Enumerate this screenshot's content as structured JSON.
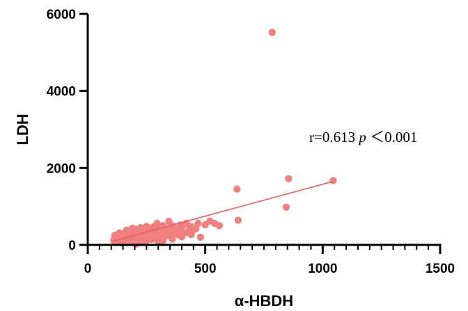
{
  "chart_data": {
    "type": "scatter",
    "xlabel": "α-HBDH",
    "ylabel": "LDH",
    "xlim": [
      0,
      1500
    ],
    "ylim": [
      0,
      6000
    ],
    "x_ticks": [
      "0",
      "500",
      "1000",
      "1500"
    ],
    "y_ticks": [
      "0",
      "2000",
      "4000",
      "6000"
    ],
    "annotation": {
      "r_text": "r=0.613 ",
      "p_symbol": "p",
      "p_text": "＜0.001"
    },
    "point_color": "#F08080",
    "line_color": "#E8605C",
    "grid": false,
    "fit_line": {
      "x": [
        110,
        1045
      ],
      "y": [
        100,
        1650
      ]
    },
    "points": [
      [
        785,
        5520
      ],
      [
        1045,
        1670
      ],
      [
        855,
        1720
      ],
      [
        635,
        1450
      ],
      [
        845,
        980
      ],
      [
        640,
        640
      ],
      [
        560,
        500
      ],
      [
        540,
        560
      ],
      [
        520,
        620
      ],
      [
        500,
        520
      ],
      [
        480,
        200
      ],
      [
        470,
        560
      ],
      [
        460,
        420
      ],
      [
        440,
        480
      ],
      [
        430,
        380
      ],
      [
        420,
        560
      ],
      [
        410,
        300
      ],
      [
        400,
        460
      ],
      [
        395,
        520
      ],
      [
        380,
        360
      ],
      [
        370,
        420
      ],
      [
        360,
        500
      ],
      [
        350,
        300
      ],
      [
        345,
        610
      ],
      [
        340,
        420
      ],
      [
        330,
        360
      ],
      [
        320,
        500
      ],
      [
        315,
        270
      ],
      [
        310,
        430
      ],
      [
        300,
        330
      ],
      [
        295,
        560
      ],
      [
        290,
        400
      ],
      [
        285,
        250
      ],
      [
        280,
        470
      ],
      [
        275,
        320
      ],
      [
        270,
        200
      ],
      [
        265,
        430
      ],
      [
        260,
        360
      ],
      [
        255,
        280
      ],
      [
        250,
        480
      ],
      [
        245,
        220
      ],
      [
        240,
        390
      ],
      [
        235,
        300
      ],
      [
        230,
        180
      ],
      [
        225,
        450
      ],
      [
        220,
        340
      ],
      [
        215,
        260
      ],
      [
        210,
        130
      ],
      [
        205,
        400
      ],
      [
        200,
        300
      ],
      [
        195,
        220
      ],
      [
        190,
        430
      ],
      [
        185,
        150
      ],
      [
        180,
        340
      ],
      [
        175,
        260
      ],
      [
        170,
        100
      ],
      [
        165,
        380
      ],
      [
        160,
        200
      ],
      [
        155,
        300
      ],
      [
        150,
        120
      ],
      [
        145,
        240
      ],
      [
        140,
        180
      ],
      [
        135,
        310
      ],
      [
        130,
        90
      ],
      [
        125,
        200
      ],
      [
        120,
        150
      ],
      [
        115,
        250
      ],
      [
        110,
        120
      ],
      [
        205,
        20
      ],
      [
        230,
        60
      ],
      [
        250,
        110
      ],
      [
        270,
        140
      ],
      [
        290,
        160
      ],
      [
        310,
        190
      ],
      [
        330,
        220
      ],
      [
        350,
        240
      ],
      [
        365,
        280
      ],
      [
        385,
        260
      ],
      [
        405,
        310
      ],
      [
        425,
        330
      ],
      [
        445,
        360
      ],
      [
        215,
        80
      ],
      [
        185,
        70
      ],
      [
        165,
        60
      ],
      [
        145,
        50
      ],
      [
        320,
        110
      ],
      [
        360,
        150
      ],
      [
        400,
        210
      ],
      [
        440,
        270
      ],
      [
        300,
        80
      ]
    ]
  }
}
